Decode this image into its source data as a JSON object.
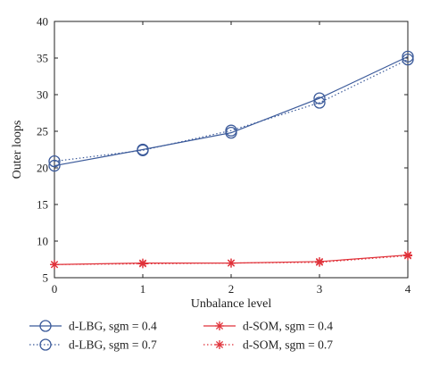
{
  "chart_data": {
    "type": "line",
    "x": [
      0,
      1,
      2,
      3,
      4
    ],
    "xlabel": "Unbalance level",
    "ylabel": "Outer loops",
    "xlim": [
      0,
      4
    ],
    "ylim": [
      5,
      40
    ],
    "xticks": [
      "0",
      "1",
      "2",
      "3",
      "4"
    ],
    "yticks": [
      "5",
      "10",
      "15",
      "20",
      "25",
      "30",
      "35",
      "40"
    ],
    "grid": false,
    "legend_position": "bottom",
    "series": [
      {
        "name": "d-LBG, sgm = 0.4",
        "values": [
          20.3,
          22.5,
          24.8,
          29.5,
          35.2
        ],
        "color": "#3b5a9a",
        "line": "solid",
        "marker": "circle"
      },
      {
        "name": "d-LBG, sgm = 0.7",
        "values": [
          20.9,
          22.4,
          25.1,
          28.9,
          34.8
        ],
        "color": "#3b5a9a",
        "line": "dotted",
        "marker": "circle"
      },
      {
        "name": "d-SOM, sgm = 0.4",
        "values": [
          6.8,
          7.0,
          7.0,
          7.2,
          8.1
        ],
        "color": "#e0323a",
        "line": "solid",
        "marker": "asterisk"
      },
      {
        "name": "d-SOM, sgm = 0.7",
        "values": [
          6.8,
          6.9,
          7.0,
          7.1,
          8.0
        ],
        "color": "#e0323a",
        "line": "dotted",
        "marker": "asterisk"
      }
    ]
  }
}
